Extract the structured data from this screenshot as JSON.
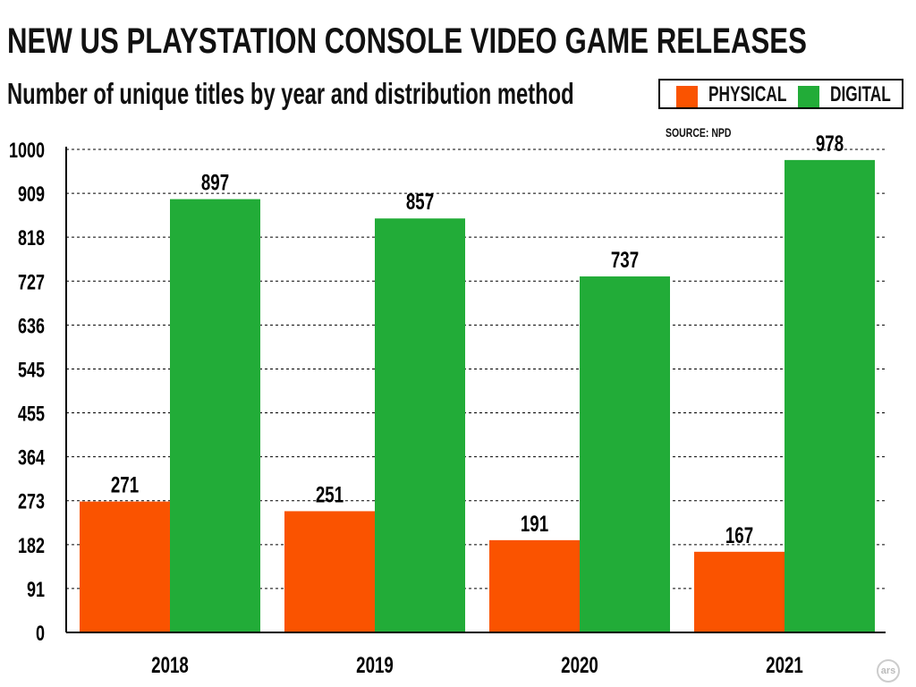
{
  "title": "NEW US PLAYSTATION CONSOLE VIDEO GAME RELEASES",
  "subtitle": "Number of unique titles by year and distribution method",
  "source": "SOURCE: NPD",
  "logo": "ars",
  "legend": [
    {
      "label": "PHYSICAL",
      "color": "#fa5300"
    },
    {
      "label": "DIGITAL",
      "color": "#22ac38"
    }
  ],
  "chart_data": {
    "type": "bar",
    "categories": [
      "2018",
      "2019",
      "2020",
      "2021"
    ],
    "series": [
      {
        "name": "PHYSICAL",
        "color": "#fa5300",
        "values": [
          271,
          251,
          191,
          167
        ]
      },
      {
        "name": "DIGITAL",
        "color": "#22ac38",
        "values": [
          897,
          857,
          737,
          978
        ]
      }
    ],
    "ylim": [
      0,
      1000
    ],
    "yticks": [
      "0",
      "91",
      "182",
      "273",
      "364",
      "455",
      "545",
      "636",
      "727",
      "818",
      "909",
      "1000"
    ],
    "grid": true,
    "legend_position": "top-right"
  }
}
